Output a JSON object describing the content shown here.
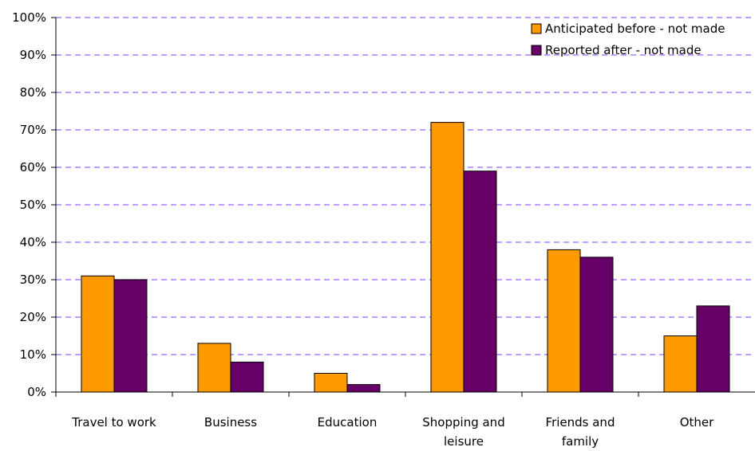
{
  "chart_data": {
    "type": "bar",
    "categories": [
      [
        "Travel to work"
      ],
      [
        "Business"
      ],
      [
        "Education"
      ],
      [
        "Shopping and",
        "leisure"
      ],
      [
        "Friends and",
        "family"
      ],
      [
        "Other"
      ]
    ],
    "series": [
      {
        "name": "Anticipated before - not made",
        "color": "#FF9900",
        "values": [
          31,
          13,
          5,
          72,
          38,
          15
        ]
      },
      {
        "name": "Reported after - not made",
        "color": "#660066",
        "values": [
          30,
          8,
          2,
          59,
          36,
          23
        ]
      }
    ],
    "y_ticks": [
      "0%",
      "10%",
      "20%",
      "30%",
      "40%",
      "50%",
      "60%",
      "70%",
      "80%",
      "90%",
      "100%"
    ],
    "ylim": [
      0,
      100
    ],
    "grid": true,
    "grid_color": "#9966FF",
    "legend_position": "top-right"
  }
}
